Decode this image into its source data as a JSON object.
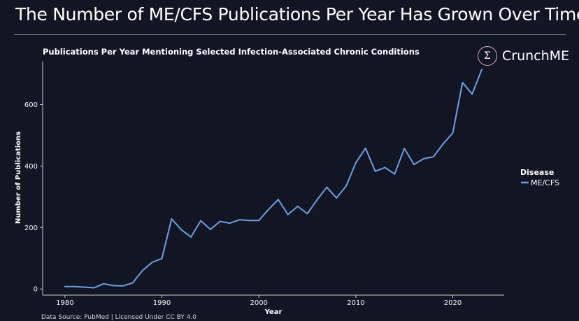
{
  "header": {
    "title": "The Number of ME/CFS Publications Per Year Has Grown Over Time"
  },
  "brand": {
    "icon": "sigma-icon",
    "symbol": "Σ",
    "name": "CrunchME"
  },
  "footer": {
    "source": "Data Source: PubMed | Licensed Under CC BY 4.0"
  },
  "colors": {
    "background": "#121624",
    "line": "#6f9fe0",
    "text": "#f5f5f5"
  },
  "chart_data": {
    "type": "line",
    "title": "Publications Per Year Mentioning Selected Infection-Associated Chronic Conditions",
    "xlabel": "Year",
    "ylabel": "Number of Publications",
    "xlim": [
      1977.7,
      2025.3
    ],
    "ylim": [
      -20,
      740
    ],
    "x_ticks": [
      1980,
      1990,
      2000,
      2010,
      2020
    ],
    "y_ticks": [
      0,
      200,
      400,
      600
    ],
    "grid": false,
    "legend": {
      "title": "Disease",
      "position": "right",
      "entries": [
        "ME/CFS"
      ]
    },
    "series": [
      {
        "name": "ME/CFS",
        "x": [
          1980,
          1981,
          1982,
          1983,
          1984,
          1985,
          1986,
          1987,
          1988,
          1989,
          1990,
          1991,
          1992,
          1993,
          1994,
          1995,
          1996,
          1997,
          1998,
          1999,
          2000,
          2001,
          2002,
          2003,
          2004,
          2005,
          2006,
          2007,
          2008,
          2009,
          2010,
          2011,
          2012,
          2013,
          2014,
          2015,
          2016,
          2017,
          2018,
          2019,
          2020,
          2021,
          2022,
          2023
        ],
        "values": [
          8,
          8,
          6,
          4,
          17,
          11,
          10,
          20,
          60,
          87,
          99,
          228,
          193,
          169,
          222,
          194,
          220,
          214,
          225,
          223,
          223,
          259,
          291,
          242,
          269,
          245,
          290,
          331,
          296,
          335,
          411,
          458,
          383,
          395,
          374,
          457,
          405,
          424,
          430,
          472,
          508,
          672,
          634,
          715
        ]
      }
    ]
  }
}
